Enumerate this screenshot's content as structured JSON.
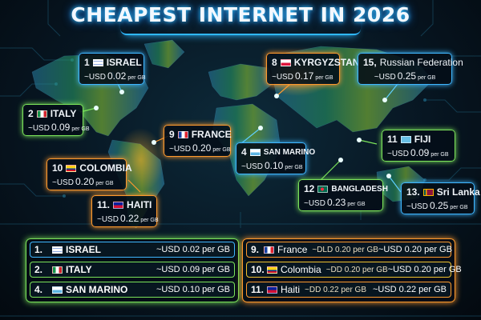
{
  "title": "CHEAPEST INTERNET IN 2026",
  "accent_colors": {
    "blue": "#3fb6ff",
    "green": "#7be35a",
    "orange": "#ff9a2e",
    "yellow": "#f2c230"
  },
  "callouts": [
    {
      "rank": "1",
      "country": "ISRAEL",
      "flag": "flag-il",
      "prefix": "~USD",
      "price": "0.02",
      "unit": "per GB"
    },
    {
      "rank": "2",
      "country": "ITALY",
      "flag": "flag-it",
      "prefix": "~USD",
      "price": "0.09",
      "unit": "per GB"
    },
    {
      "rank": "8",
      "country": "KYRGYZSTAN",
      "flag": "flag-pl",
      "prefix": "~USD",
      "price": "0.17",
      "unit": "per GB"
    },
    {
      "rank": "15,",
      "country": "Russian Federation",
      "flag": "",
      "prefix": "~USD",
      "price": "0.25",
      "unit": "per GB"
    },
    {
      "rank": "9",
      "country": "FRANCE",
      "flag": "flag-fr",
      "prefix": "~USD",
      "price": "0.20",
      "unit": "per GB"
    },
    {
      "rank": "4",
      "country": "SAN MARINO",
      "flag": "flag-sm",
      "prefix": "~USD",
      "price": "0.10",
      "unit": "per GB"
    },
    {
      "rank": "11",
      "country": "FIJI",
      "flag": "flag-fj",
      "prefix": "~USD",
      "price": "0.09",
      "unit": "per GB"
    },
    {
      "rank": "10",
      "country": "COLOMBIA",
      "flag": "flag-co",
      "prefix": "~USD",
      "price": "0.20",
      "unit": "per GB"
    },
    {
      "rank": "12",
      "country": "BANGLADESH",
      "flag": "flag-bd",
      "prefix": "~USD",
      "price": "0.23",
      "unit": "per GB"
    },
    {
      "rank": "13.",
      "country": "Sri Lanka",
      "flag": "flag-lk",
      "prefix": "~USD",
      "price": "0.25",
      "unit": "per GB"
    },
    {
      "rank": "11.",
      "country": "HAITI",
      "flag": "flag-ht",
      "prefix": "~USD",
      "price": "0.22",
      "unit": "per GB"
    }
  ],
  "table_left": [
    {
      "rank": "1.",
      "country": "ISRAEL",
      "flag": "flag-il",
      "price": "~USD 0.02 per GB"
    },
    {
      "rank": "2.",
      "country": "ITALY",
      "flag": "flag-it",
      "price": "~USD 0.09 per GB"
    },
    {
      "rank": "4.",
      "country": "SAN MARINO",
      "flag": "flag-sm",
      "price": "~USD 0.10 per GB"
    }
  ],
  "table_right": [
    {
      "rank": "9.",
      "country": "France",
      "flag": "flag-fr",
      "mid": "~DLD 0.20 per GB",
      "price": "~USD 0.20 per GB"
    },
    {
      "rank": "10.",
      "country": "Colombia",
      "flag": "flag-co",
      "mid": "~DD 0.20 per GB",
      "price": "~USD 0.20 per GB"
    },
    {
      "rank": "11.",
      "country": "Haiti",
      "flag": "flag-ht",
      "mid": "~DD 0.22 per GB",
      "price": "~USD 0.22 per GB"
    }
  ]
}
